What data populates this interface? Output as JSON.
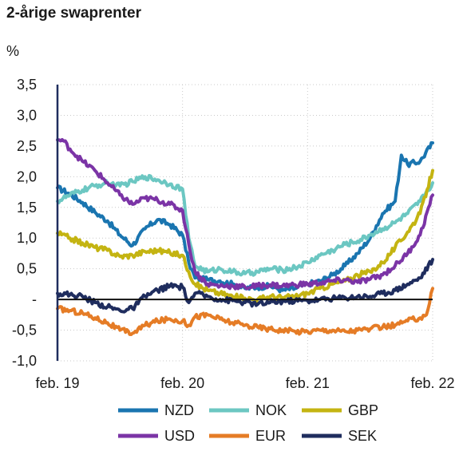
{
  "chart_data": {
    "type": "line",
    "title": "2-årige swaprenter",
    "ylabel": "%",
    "xlabel": "",
    "ylim": [
      -1.0,
      3.5
    ],
    "y_ticks": [
      {
        "value": 3.5,
        "label": "3,5"
      },
      {
        "value": 3.0,
        "label": "3,0"
      },
      {
        "value": 2.5,
        "label": "2,5"
      },
      {
        "value": 2.0,
        "label": "2,0"
      },
      {
        "value": 1.5,
        "label": "1,5"
      },
      {
        "value": 1.0,
        "label": "1,0"
      },
      {
        "value": 0.5,
        "label": "0,5"
      },
      {
        "value": 0.0,
        "label": "-"
      },
      {
        "value": -0.5,
        "label": "-0,5"
      },
      {
        "value": -1.0,
        "label": "-1,0"
      }
    ],
    "x_ticks": [
      {
        "value": 2019.0,
        "label": "feb. 19"
      },
      {
        "value": 2020.0,
        "label": "feb. 20"
      },
      {
        "value": 2021.0,
        "label": "feb. 21"
      },
      {
        "value": 2022.0,
        "label": "feb. 22"
      }
    ],
    "xlim": [
      2019.0,
      2022.0
    ],
    "grid": true,
    "legend_position": "bottom",
    "series": [
      {
        "name": "NZD",
        "color": "#1a75b0",
        "x": [
          2019.0,
          2019.1,
          2019.2,
          2019.3,
          2019.4,
          2019.5,
          2019.6,
          2019.7,
          2019.8,
          2019.9,
          2020.0,
          2020.05,
          2020.1,
          2020.2,
          2020.3,
          2020.4,
          2020.5,
          2020.6,
          2020.7,
          2020.8,
          2020.9,
          2021.0,
          2021.1,
          2021.2,
          2021.3,
          2021.4,
          2021.5,
          2021.55,
          2021.6,
          2021.7,
          2021.75,
          2021.8,
          2021.9,
          2022.0
        ],
        "y": [
          1.82,
          1.72,
          1.58,
          1.42,
          1.28,
          1.05,
          0.88,
          1.15,
          1.3,
          1.22,
          1.05,
          0.6,
          0.35,
          0.32,
          0.3,
          0.25,
          0.18,
          0.2,
          0.22,
          0.15,
          0.18,
          0.25,
          0.3,
          0.4,
          0.55,
          0.75,
          1.0,
          1.2,
          1.4,
          1.6,
          2.35,
          2.2,
          2.25,
          2.55
        ]
      },
      {
        "name": "NOK",
        "color": "#6cc7c2",
        "x": [
          2019.0,
          2019.1,
          2019.2,
          2019.3,
          2019.4,
          2019.5,
          2019.6,
          2019.7,
          2019.8,
          2019.9,
          2020.0,
          2020.05,
          2020.1,
          2020.2,
          2020.3,
          2020.4,
          2020.5,
          2020.6,
          2020.7,
          2020.8,
          2020.9,
          2021.0,
          2021.1,
          2021.2,
          2021.3,
          2021.4,
          2021.5,
          2021.6,
          2021.7,
          2021.8,
          2021.9,
          2022.0
        ],
        "y": [
          1.6,
          1.7,
          1.78,
          1.85,
          1.9,
          1.85,
          1.92,
          2.0,
          1.95,
          1.88,
          1.8,
          1.0,
          0.55,
          0.45,
          0.5,
          0.45,
          0.42,
          0.45,
          0.5,
          0.48,
          0.52,
          0.6,
          0.72,
          0.8,
          0.9,
          0.95,
          1.05,
          1.15,
          1.25,
          1.4,
          1.6,
          1.9
        ]
      },
      {
        "name": "GBP",
        "color": "#c4b412",
        "x": [
          2019.0,
          2019.1,
          2019.2,
          2019.3,
          2019.4,
          2019.5,
          2019.6,
          2019.7,
          2019.8,
          2019.9,
          2020.0,
          2020.05,
          2020.1,
          2020.2,
          2020.3,
          2020.4,
          2020.5,
          2020.6,
          2020.7,
          2020.8,
          2020.9,
          2021.0,
          2021.1,
          2021.2,
          2021.3,
          2021.4,
          2021.5,
          2021.6,
          2021.7,
          2021.8,
          2021.9,
          2022.0
        ],
        "y": [
          1.08,
          1.0,
          0.92,
          0.85,
          0.8,
          0.7,
          0.72,
          0.78,
          0.8,
          0.76,
          0.72,
          0.45,
          0.25,
          0.15,
          0.1,
          0.05,
          0.02,
          0.0,
          0.05,
          0.03,
          0.05,
          0.1,
          0.18,
          0.25,
          0.3,
          0.4,
          0.45,
          0.6,
          0.85,
          1.1,
          1.4,
          2.1
        ]
      },
      {
        "name": "USD",
        "color": "#7b34a6",
        "x": [
          2019.0,
          2019.05,
          2019.1,
          2019.2,
          2019.3,
          2019.4,
          2019.5,
          2019.6,
          2019.7,
          2019.8,
          2019.9,
          2020.0,
          2020.05,
          2020.1,
          2020.2,
          2020.3,
          2020.4,
          2020.5,
          2020.6,
          2020.7,
          2020.8,
          2020.9,
          2021.0,
          2021.1,
          2021.2,
          2021.3,
          2021.4,
          2021.5,
          2021.6,
          2021.7,
          2021.8,
          2021.9,
          2022.0
        ],
        "y": [
          2.6,
          2.58,
          2.45,
          2.25,
          2.1,
          1.9,
          1.7,
          1.55,
          1.65,
          1.62,
          1.55,
          1.45,
          0.9,
          0.45,
          0.25,
          0.22,
          0.22,
          0.2,
          0.22,
          0.24,
          0.22,
          0.24,
          0.25,
          0.27,
          0.3,
          0.32,
          0.28,
          0.33,
          0.4,
          0.55,
          0.75,
          1.05,
          1.7
        ]
      },
      {
        "name": "EUR",
        "color": "#e57c26",
        "x": [
          2019.0,
          2019.1,
          2019.2,
          2019.3,
          2019.4,
          2019.5,
          2019.6,
          2019.7,
          2019.8,
          2019.9,
          2020.0,
          2020.05,
          2020.1,
          2020.2,
          2020.3,
          2020.4,
          2020.5,
          2020.6,
          2020.7,
          2020.8,
          2020.9,
          2021.0,
          2021.1,
          2021.2,
          2021.3,
          2021.4,
          2021.5,
          2021.6,
          2021.7,
          2021.8,
          2021.9,
          2021.95,
          2022.0
        ],
        "y": [
          -0.15,
          -0.18,
          -0.22,
          -0.3,
          -0.38,
          -0.5,
          -0.55,
          -0.42,
          -0.35,
          -0.32,
          -0.35,
          -0.42,
          -0.28,
          -0.25,
          -0.32,
          -0.38,
          -0.42,
          -0.45,
          -0.48,
          -0.5,
          -0.52,
          -0.52,
          -0.5,
          -0.5,
          -0.52,
          -0.5,
          -0.48,
          -0.45,
          -0.42,
          -0.35,
          -0.3,
          -0.25,
          0.18
        ]
      },
      {
        "name": "SEK",
        "color": "#1f2d5e",
        "x": [
          2019.0,
          2019.1,
          2019.2,
          2019.3,
          2019.4,
          2019.5,
          2019.6,
          2019.7,
          2019.8,
          2019.9,
          2020.0,
          2020.05,
          2020.1,
          2020.2,
          2020.3,
          2020.4,
          2020.5,
          2020.6,
          2020.7,
          2020.8,
          2020.9,
          2021.0,
          2021.1,
          2021.2,
          2021.3,
          2021.4,
          2021.5,
          2021.6,
          2021.7,
          2021.8,
          2021.9,
          2022.0
        ],
        "y": [
          0.1,
          0.08,
          0.05,
          -0.05,
          -0.12,
          -0.18,
          -0.15,
          0.05,
          0.15,
          0.22,
          0.2,
          -0.05,
          0.1,
          0.05,
          0.0,
          -0.02,
          -0.05,
          -0.08,
          -0.05,
          -0.03,
          -0.02,
          -0.02,
          0.0,
          0.02,
          0.03,
          0.05,
          0.05,
          0.1,
          0.15,
          0.25,
          0.35,
          0.65
        ]
      }
    ],
    "legend_rows": [
      [
        "NZD",
        "NOK",
        "GBP"
      ],
      [
        "USD",
        "EUR",
        "SEK"
      ]
    ]
  }
}
